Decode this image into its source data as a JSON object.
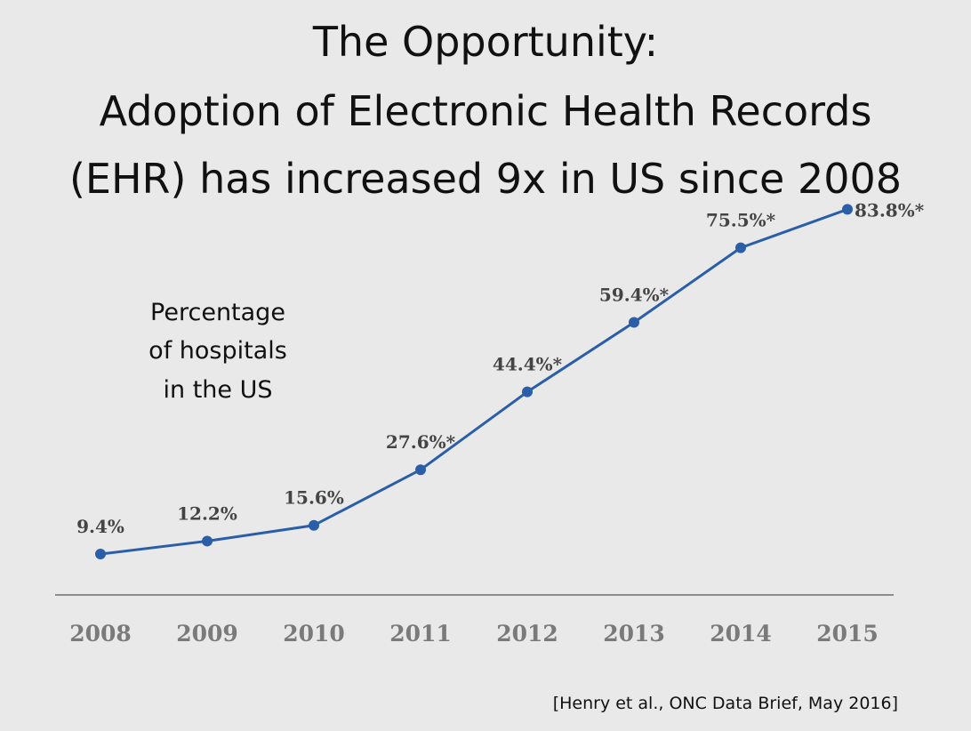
{
  "slide": {
    "title_lines": [
      "The Opportunity:",
      "Adoption of Electronic Health Records",
      "(EHR) has increased 9x in US since 2008"
    ],
    "annotation_lines": [
      "Percentage",
      "of hospitals",
      "in the US"
    ],
    "citation": "[Henry et al., ONC Data Brief, May 2016]"
  },
  "chart_data": {
    "type": "line",
    "x": [
      "2008",
      "2009",
      "2010",
      "2011",
      "2012",
      "2013",
      "2014",
      "2015"
    ],
    "series": [
      {
        "values": [
          9.4,
          12.2,
          15.6,
          27.6,
          44.4,
          59.4,
          75.5,
          83.8
        ]
      }
    ],
    "data_labels": [
      "9.4%",
      "12.2%",
      "15.6%",
      "27.6%*",
      "44.4%*",
      "59.4%*",
      "75.5%*",
      "83.8%*"
    ],
    "ylim": [
      0,
      100
    ],
    "grid": false,
    "line_color": "#2a5ea8",
    "axis_color": "#8c8c8c"
  }
}
